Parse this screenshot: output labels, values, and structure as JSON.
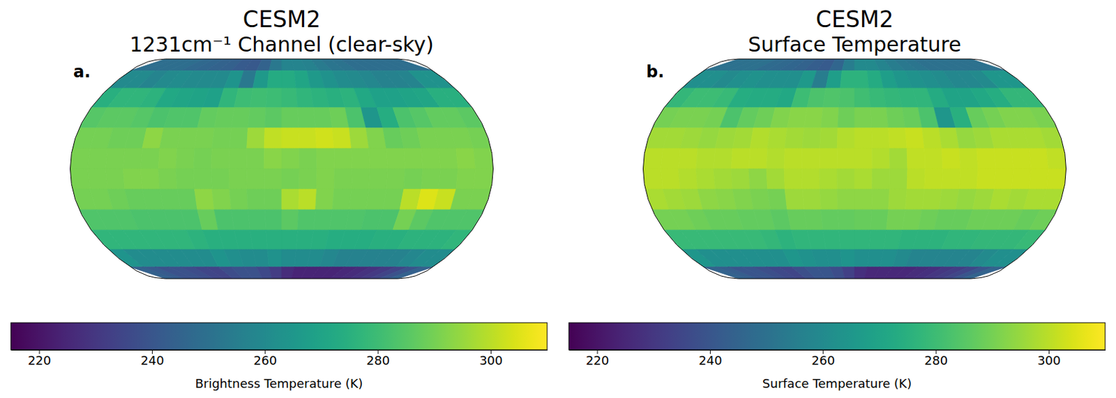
{
  "chart_data": [
    {
      "type": "heatmap",
      "title": "CESM2",
      "subtitle": "1231cm⁻¹ Channel (clear-sky)",
      "panel": "a.",
      "color": "viridis",
      "lon_edges": [
        -180,
        -165,
        -150,
        -135,
        -120,
        -105,
        -90,
        -75,
        -60,
        -45,
        -30,
        -15,
        0,
        15,
        30,
        45,
        60,
        75,
        90,
        105,
        120,
        135,
        150,
        165,
        180
      ],
      "lat_edges": [
        90,
        75,
        60,
        45,
        30,
        15,
        0,
        -15,
        -30,
        -45,
        -60,
        -75,
        -90
      ],
      "values": [
        [
          249,
          249,
          249,
          249,
          247,
          246,
          245,
          244,
          242,
          241,
          245,
          253,
          258,
          258,
          257,
          254,
          252,
          251,
          249,
          249,
          249,
          249,
          249,
          249
        ],
        [
          260,
          260,
          258,
          260,
          261,
          260,
          260,
          260,
          264,
          253,
          266,
          273,
          273,
          271,
          266,
          263,
          261,
          260,
          259,
          257,
          257,
          258,
          263,
          263
        ],
        [
          275,
          277,
          277,
          276,
          272,
          271,
          270,
          269,
          277,
          280,
          281,
          280,
          279,
          277,
          276,
          275,
          276,
          272,
          269,
          269,
          270,
          271,
          275,
          275
        ],
        [
          285,
          286,
          286,
          285,
          283,
          284,
          284,
          287,
          288,
          288,
          287,
          286,
          288,
          288,
          288,
          289,
          283,
          265,
          274,
          283,
          285,
          287,
          287,
          286
        ],
        [
          290,
          290,
          289,
          289,
          294,
          291,
          291,
          291,
          290,
          290,
          296,
          301,
          302,
          302,
          303,
          302,
          296,
          292,
          288,
          289,
          291,
          291,
          291,
          290
        ],
        [
          291,
          291,
          291,
          291,
          291,
          292,
          291,
          290,
          291,
          291,
          291,
          293,
          292,
          291,
          292,
          292,
          292,
          292,
          292,
          292,
          292,
          292,
          293,
          292
        ],
        [
          291,
          291,
          291,
          292,
          292,
          291,
          290,
          290,
          290,
          291,
          291,
          291,
          290,
          291,
          292,
          291,
          291,
          291,
          291,
          290,
          291,
          291,
          292,
          292
        ],
        [
          290,
          290,
          289,
          288,
          288,
          288,
          288,
          294,
          292,
          290,
          289,
          289,
          298,
          300,
          292,
          290,
          290,
          290,
          290,
          300,
          305,
          302,
          291,
          291
        ],
        [
          284,
          284,
          284,
          283,
          283,
          283,
          283,
          288,
          283,
          283,
          283,
          283,
          286,
          284,
          284,
          284,
          284,
          283,
          283,
          290,
          286,
          284,
          284,
          284
        ],
        [
          277,
          277,
          277,
          277,
          277,
          277,
          276,
          275,
          275,
          275,
          275,
          275,
          275,
          275,
          275,
          274,
          274,
          274,
          275,
          275,
          276,
          276,
          276,
          277
        ],
        [
          264,
          261,
          261,
          261,
          261,
          261,
          261,
          264,
          262,
          261,
          261,
          263,
          261,
          261,
          261,
          259,
          257,
          257,
          257,
          257,
          257,
          259,
          261,
          261
        ],
        [
          244,
          242,
          239,
          239,
          237,
          235,
          234,
          237,
          239,
          239,
          236,
          232,
          227,
          225,
          225,
          225,
          225,
          226,
          227,
          229,
          231,
          234,
          239,
          244
        ]
      ],
      "colorbar": {
        "label": "Brightness Temperature (K)",
        "range": [
          215,
          310
        ],
        "ticks": [
          220,
          240,
          260,
          280,
          300
        ]
      }
    },
    {
      "type": "heatmap",
      "title": "CESM2",
      "subtitle": "Surface Temperature",
      "panel": "b.",
      "color": "viridis",
      "lon_edges": [
        -180,
        -165,
        -150,
        -135,
        -120,
        -105,
        -90,
        -75,
        -60,
        -45,
        -30,
        -15,
        0,
        15,
        30,
        45,
        60,
        75,
        90,
        105,
        120,
        135,
        150,
        165,
        180
      ],
      "lat_edges": [
        90,
        75,
        60,
        45,
        30,
        15,
        0,
        -15,
        -30,
        -45,
        -60,
        -75,
        -90
      ],
      "values": [
        [
          250,
          250,
          250,
          250,
          248,
          247,
          246,
          245,
          243,
          242,
          246,
          255,
          260,
          260,
          258,
          255,
          253,
          252,
          250,
          250,
          250,
          250,
          250,
          250
        ],
        [
          262,
          262,
          260,
          262,
          263,
          262,
          262,
          262,
          266,
          255,
          268,
          276,
          276,
          273,
          268,
          265,
          263,
          262,
          261,
          259,
          259,
          260,
          265,
          265
        ],
        [
          278,
          280,
          280,
          279,
          274,
          273,
          273,
          272,
          280,
          283,
          284,
          283,
          281,
          279,
          278,
          277,
          277,
          273,
          270,
          270,
          272,
          274,
          278,
          278
        ],
        [
          290,
          291,
          291,
          290,
          283,
          287,
          289,
          292,
          293,
          293,
          292,
          289,
          291,
          291,
          289,
          288,
          283,
          265,
          275,
          288,
          290,
          292,
          292,
          291
        ],
        [
          297,
          297,
          296,
          295,
          296,
          297,
          299,
          298,
          297,
          296,
          297,
          299,
          300,
          300,
          301,
          302,
          300,
          298,
          295,
          296,
          298,
          298,
          298,
          297
        ],
        [
          300,
          300,
          300,
          299,
          299,
          300,
          300,
          299,
          300,
          300,
          300,
          300,
          300,
          299,
          297,
          301,
          301,
          302,
          301,
          302,
          302,
          302,
          302,
          301
        ],
        [
          300,
          300,
          299,
          298,
          297,
          296,
          294,
          297,
          299,
          299,
          298,
          297,
          298,
          296,
          296,
          300,
          301,
          301,
          301,
          302,
          302,
          302,
          302,
          302
        ],
        [
          298,
          297,
          296,
          294,
          293,
          292,
          291,
          290,
          296,
          296,
          295,
          294,
          294,
          294,
          296,
          297,
          297,
          296,
          295,
          296,
          298,
          297,
          298,
          298
        ],
        [
          290,
          290,
          289,
          288,
          288,
          287,
          287,
          286,
          288,
          288,
          287,
          287,
          288,
          288,
          290,
          290,
          289,
          288,
          288,
          289,
          289,
          289,
          288,
          289
        ],
        [
          279,
          279,
          279,
          279,
          279,
          279,
          278,
          276,
          277,
          277,
          277,
          277,
          277,
          277,
          277,
          276,
          276,
          276,
          277,
          277,
          278,
          278,
          278,
          279
        ],
        [
          265,
          262,
          262,
          262,
          262,
          262,
          262,
          265,
          263,
          262,
          262,
          264,
          262,
          262,
          262,
          260,
          258,
          258,
          258,
          258,
          258,
          260,
          262,
          262
        ],
        [
          245,
          243,
          240,
          240,
          238,
          236,
          235,
          238,
          240,
          240,
          237,
          233,
          228,
          226,
          226,
          226,
          226,
          227,
          228,
          230,
          232,
          235,
          240,
          245
        ]
      ],
      "colorbar": {
        "label": "Surface Temperature (K)",
        "range": [
          215,
          310
        ],
        "ticks": [
          220,
          240,
          260,
          280,
          300
        ]
      }
    }
  ]
}
